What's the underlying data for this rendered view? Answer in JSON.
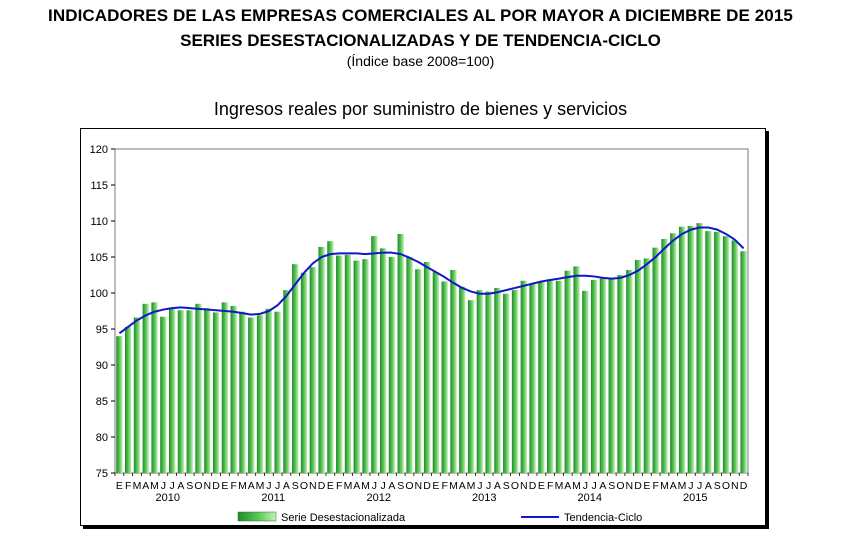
{
  "header": {
    "title": "INDICADORES DE LAS EMPRESAS COMERCIALES AL POR MAYOR A DICIEMBRE DE 2015",
    "subtitle": "SERIES DESESTACIONALIZADAS Y DE TENDENCIA-CICLO",
    "base_note": "(Índice base 2008=100)"
  },
  "chart_data": {
    "type": "bar",
    "title": "Ingresos reales por suministro de bienes y servicios",
    "xlabel": "",
    "ylabel": "",
    "ylim": [
      75,
      120
    ],
    "yticks": [
      75,
      80,
      85,
      90,
      95,
      100,
      105,
      110,
      115,
      120
    ],
    "grid": false,
    "legend_position": "bottom",
    "month_labels": [
      "E",
      "F",
      "M",
      "A",
      "M",
      "J",
      "J",
      "A",
      "S",
      "O",
      "N",
      "D"
    ],
    "years": [
      "2010",
      "2011",
      "2012",
      "2013",
      "2014",
      "2015"
    ],
    "categories": [
      "E 2010",
      "F 2010",
      "M 2010",
      "A 2010",
      "M 2010",
      "J 2010",
      "J 2010",
      "A 2010",
      "S 2010",
      "O 2010",
      "N 2010",
      "D 2010",
      "E 2011",
      "F 2011",
      "M 2011",
      "A 2011",
      "M 2011",
      "J 2011",
      "J 2011",
      "A 2011",
      "S 2011",
      "O 2011",
      "N 2011",
      "D 2011",
      "E 2012",
      "F 2012",
      "M 2012",
      "A 2012",
      "M 2012",
      "J 2012",
      "J 2012",
      "A 2012",
      "S 2012",
      "O 2012",
      "N 2012",
      "D 2012",
      "E 2013",
      "F 2013",
      "M 2013",
      "A 2013",
      "M 2013",
      "J 2013",
      "J 2013",
      "A 2013",
      "S 2013",
      "O 2013",
      "N 2013",
      "D 2013",
      "E 2014",
      "F 2014",
      "M 2014",
      "A 2014",
      "M 2014",
      "J 2014",
      "J 2014",
      "A 2014",
      "S 2014",
      "O 2014",
      "N 2014",
      "D 2014",
      "E 2015",
      "F 2015",
      "M 2015",
      "A 2015",
      "M 2015",
      "J 2015",
      "J 2015",
      "A 2015",
      "S 2015",
      "O 2015",
      "N 2015",
      "D 2015"
    ],
    "series": [
      {
        "name": "Serie Desestacionalizada",
        "type": "bar",
        "color": "#3fae3f",
        "values": [
          94.0,
          95.3,
          96.6,
          98.5,
          98.7,
          96.7,
          97.8,
          97.6,
          97.6,
          98.5,
          97.9,
          97.3,
          98.7,
          98.2,
          97.4,
          96.6,
          96.9,
          97.8,
          97.4,
          100.4,
          104.0,
          102.8,
          103.6,
          106.4,
          107.2,
          105.2,
          105.3,
          104.5,
          104.7,
          107.9,
          106.2,
          105.0,
          108.2,
          105.0,
          103.3,
          104.3,
          102.9,
          101.6,
          103.2,
          100.9,
          99.0,
          100.4,
          100.2,
          100.7,
          99.9,
          100.4,
          101.7,
          101.3,
          101.6,
          101.9,
          101.7,
          103.1,
          103.7,
          100.3,
          101.8,
          102.0,
          102.0,
          102.5,
          103.2,
          104.6,
          104.8,
          106.3,
          107.5,
          108.3,
          109.2,
          109.3,
          109.7,
          108.6,
          108.5,
          107.9,
          107.3,
          105.8
        ]
      },
      {
        "name": "Tendencia-Ciclo",
        "type": "line",
        "color": "#1018c8",
        "values": [
          94.4,
          95.3,
          96.2,
          96.9,
          97.4,
          97.7,
          97.9,
          98.0,
          97.9,
          97.8,
          97.7,
          97.6,
          97.5,
          97.4,
          97.2,
          97.0,
          97.1,
          97.5,
          98.3,
          99.6,
          101.2,
          102.8,
          104.1,
          105.0,
          105.4,
          105.5,
          105.5,
          105.5,
          105.4,
          105.5,
          105.6,
          105.6,
          105.4,
          104.9,
          104.3,
          103.6,
          102.9,
          102.2,
          101.4,
          100.7,
          100.2,
          99.9,
          99.9,
          100.1,
          100.4,
          100.7,
          101.0,
          101.3,
          101.6,
          101.8,
          102.0,
          102.2,
          102.4,
          102.4,
          102.3,
          102.1,
          102.0,
          102.1,
          102.5,
          103.1,
          104.0,
          105.0,
          106.2,
          107.3,
          108.2,
          108.8,
          109.1,
          109.1,
          108.8,
          108.2,
          107.4,
          106.2
        ]
      }
    ]
  }
}
